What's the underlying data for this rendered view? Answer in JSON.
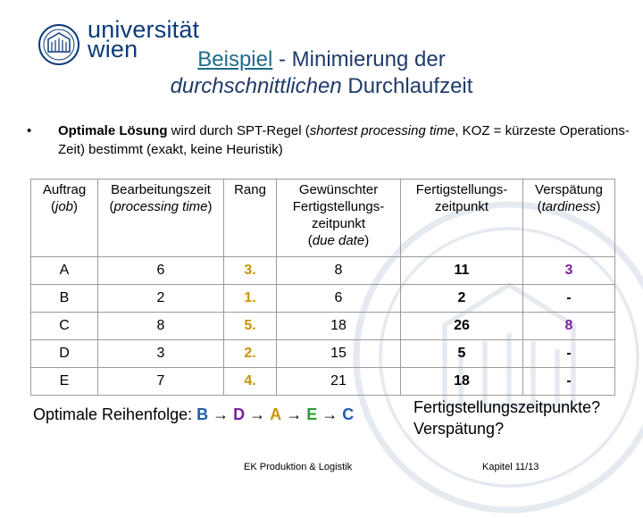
{
  "header": {
    "logo_line1": "universität",
    "logo_line2": "wien",
    "title_part1": "Beispiel",
    "title_part2": " - Minimierung der",
    "title_part3": "durchschnittlichen",
    "title_part4": " Durchlaufzeit"
  },
  "bullet": {
    "marker": "•",
    "bold": "Optimale Lösung",
    "text1": " wird durch SPT-Regel (",
    "italic": "shortest processing time",
    "text2": ", KOZ = kürzeste Operations-Zeit) bestimmt (exakt, keine Heuristik)"
  },
  "table": {
    "headers": [
      {
        "main": "Auftrag",
        "italic": "job"
      },
      {
        "main": "Bearbeitungszeit",
        "italic": "processing time"
      },
      {
        "main": "Rang",
        "italic": ""
      },
      {
        "main": "Gewünschter Fertigstellungs-zeitpunkt",
        "italic": "due date"
      },
      {
        "main": "Fertigstellungs-zeitpunkt",
        "italic": ""
      },
      {
        "main": "Verspätung",
        "italic": "tardiness"
      }
    ],
    "rows": [
      {
        "job": "A",
        "time": "6",
        "rank": "3.",
        "due": "8",
        "finish": "11",
        "tardy": "3"
      },
      {
        "job": "B",
        "time": "2",
        "rank": "1.",
        "due": "6",
        "finish": "2",
        "tardy": "-"
      },
      {
        "job": "C",
        "time": "8",
        "rank": "5.",
        "due": "18",
        "finish": "26",
        "tardy": "8"
      },
      {
        "job": "D",
        "time": "3",
        "rank": "2.",
        "due": "15",
        "finish": "5",
        "tardy": "-"
      },
      {
        "job": "E",
        "time": "7",
        "rank": "4.",
        "due": "21",
        "finish": "18",
        "tardy": "-"
      }
    ]
  },
  "order": {
    "label": "Optimale Reihenfolge: ",
    "sequence": [
      "B",
      "D",
      "A",
      "E",
      "C"
    ],
    "arrow": "→"
  },
  "question": {
    "line1": "Fertigstellungszeitpunkte?",
    "line2": "Verspätung?"
  },
  "footer": {
    "left": "EK Produktion & Logistik",
    "right": "Kapitel 11/13"
  },
  "colors": {
    "title": "#1f3b6a",
    "rank": "#c89400",
    "tardiness": "#7a1fa0"
  }
}
